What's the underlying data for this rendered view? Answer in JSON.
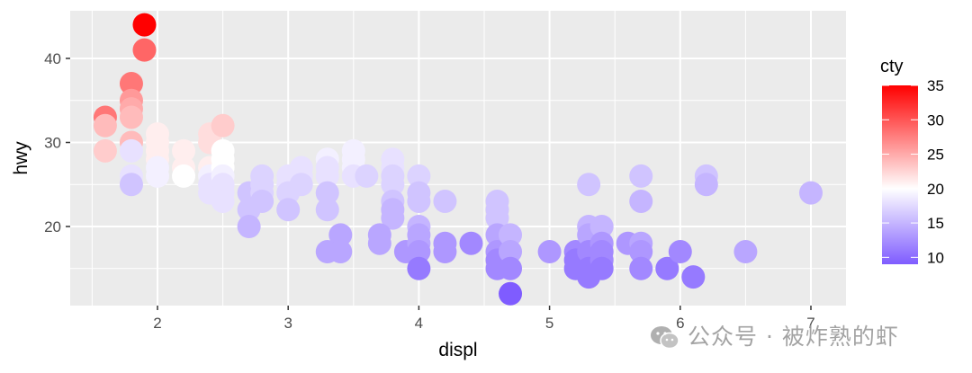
{
  "chart_data": {
    "type": "scatter",
    "title": "",
    "xlabel": "displ",
    "ylabel": "hwy",
    "xlim": [
      1.4,
      7.3
    ],
    "ylim": [
      10.5,
      46
    ],
    "x_ticks": [
      2,
      3,
      4,
      5,
      6,
      7
    ],
    "y_ticks": [
      20,
      30,
      40
    ],
    "grid": true,
    "legend": {
      "title": "cty",
      "type": "colorbar",
      "position": "right",
      "ticks": [
        10,
        15,
        20,
        25,
        30,
        35
      ],
      "range": [
        9,
        35
      ],
      "low_color": "#7f5cff",
      "mid_color": "#ffffff",
      "mid_value": 20,
      "high_color": "#ff0000"
    },
    "points": [
      {
        "displ": 1.9,
        "hwy": 44,
        "cty": 35
      },
      {
        "displ": 1.9,
        "hwy": 41,
        "cty": 29
      },
      {
        "displ": 1.8,
        "hwy": 37,
        "cty": 28
      },
      {
        "displ": 1.8,
        "hwy": 35,
        "cty": 26
      },
      {
        "displ": 1.8,
        "hwy": 34,
        "cty": 25
      },
      {
        "displ": 1.8,
        "hwy": 33,
        "cty": 24
      },
      {
        "displ": 1.8,
        "hwy": 30,
        "cty": 24
      },
      {
        "displ": 1.8,
        "hwy": 29,
        "cty": 18
      },
      {
        "displ": 1.8,
        "hwy": 26,
        "cty": 18
      },
      {
        "displ": 1.8,
        "hwy": 25,
        "cty": 16
      },
      {
        "displ": 1.6,
        "hwy": 33,
        "cty": 28
      },
      {
        "displ": 1.6,
        "hwy": 32,
        "cty": 24
      },
      {
        "displ": 1.6,
        "hwy": 29,
        "cty": 23
      },
      {
        "displ": 2.0,
        "hwy": 31,
        "cty": 21
      },
      {
        "displ": 2.0,
        "hwy": 30,
        "cty": 21
      },
      {
        "displ": 2.0,
        "hwy": 29,
        "cty": 21
      },
      {
        "displ": 2.0,
        "hwy": 28,
        "cty": 21
      },
      {
        "displ": 2.0,
        "hwy": 27,
        "cty": 19
      },
      {
        "displ": 2.0,
        "hwy": 26,
        "cty": 19
      },
      {
        "displ": 2.2,
        "hwy": 29,
        "cty": 21
      },
      {
        "displ": 2.2,
        "hwy": 27,
        "cty": 21
      },
      {
        "displ": 2.2,
        "hwy": 26,
        "cty": 20
      },
      {
        "displ": 2.4,
        "hwy": 31,
        "cty": 22
      },
      {
        "displ": 2.4,
        "hwy": 30,
        "cty": 22
      },
      {
        "displ": 2.4,
        "hwy": 27,
        "cty": 21
      },
      {
        "displ": 2.4,
        "hwy": 26,
        "cty": 19
      },
      {
        "displ": 2.4,
        "hwy": 25,
        "cty": 18
      },
      {
        "displ": 2.4,
        "hwy": 24,
        "cty": 18
      },
      {
        "displ": 2.5,
        "hwy": 32,
        "cty": 23
      },
      {
        "displ": 2.5,
        "hwy": 29,
        "cty": 20
      },
      {
        "displ": 2.5,
        "hwy": 28,
        "cty": 20
      },
      {
        "displ": 2.5,
        "hwy": 27,
        "cty": 20
      },
      {
        "displ": 2.5,
        "hwy": 26,
        "cty": 19
      },
      {
        "displ": 2.5,
        "hwy": 25,
        "cty": 18
      },
      {
        "displ": 2.5,
        "hwy": 24,
        "cty": 18
      },
      {
        "displ": 2.5,
        "hwy": 23,
        "cty": 18
      },
      {
        "displ": 2.7,
        "hwy": 24,
        "cty": 16
      },
      {
        "displ": 2.7,
        "hwy": 22,
        "cty": 16
      },
      {
        "displ": 2.7,
        "hwy": 20,
        "cty": 15
      },
      {
        "displ": 2.8,
        "hwy": 26,
        "cty": 17
      },
      {
        "displ": 2.8,
        "hwy": 25,
        "cty": 17
      },
      {
        "displ": 2.8,
        "hwy": 24,
        "cty": 17
      },
      {
        "displ": 2.8,
        "hwy": 23,
        "cty": 16
      },
      {
        "displ": 3.0,
        "hwy": 26,
        "cty": 18
      },
      {
        "displ": 3.0,
        "hwy": 25,
        "cty": 18
      },
      {
        "displ": 3.0,
        "hwy": 24,
        "cty": 17
      },
      {
        "displ": 3.0,
        "hwy": 22,
        "cty": 16
      },
      {
        "displ": 3.1,
        "hwy": 27,
        "cty": 18
      },
      {
        "displ": 3.1,
        "hwy": 26,
        "cty": 18
      },
      {
        "displ": 3.1,
        "hwy": 25,
        "cty": 17
      },
      {
        "displ": 3.3,
        "hwy": 28,
        "cty": 19
      },
      {
        "displ": 3.3,
        "hwy": 27,
        "cty": 18
      },
      {
        "displ": 3.3,
        "hwy": 26,
        "cty": 18
      },
      {
        "displ": 3.3,
        "hwy": 24,
        "cty": 16
      },
      {
        "displ": 3.3,
        "hwy": 22,
        "cty": 16
      },
      {
        "displ": 3.3,
        "hwy": 17,
        "cty": 14
      },
      {
        "displ": 3.4,
        "hwy": 19,
        "cty": 14
      },
      {
        "displ": 3.4,
        "hwy": 17,
        "cty": 14
      },
      {
        "displ": 3.5,
        "hwy": 29,
        "cty": 19
      },
      {
        "displ": 3.5,
        "hwy": 28,
        "cty": 19
      },
      {
        "displ": 3.5,
        "hwy": 27,
        "cty": 19
      },
      {
        "displ": 3.5,
        "hwy": 26,
        "cty": 18
      },
      {
        "displ": 3.6,
        "hwy": 26,
        "cty": 17
      },
      {
        "displ": 3.8,
        "hwy": 28,
        "cty": 18
      },
      {
        "displ": 3.8,
        "hwy": 27,
        "cty": 18
      },
      {
        "displ": 3.8,
        "hwy": 26,
        "cty": 17
      },
      {
        "displ": 3.8,
        "hwy": 25,
        "cty": 17
      },
      {
        "displ": 3.8,
        "hwy": 23,
        "cty": 16
      },
      {
        "displ": 3.8,
        "hwy": 22,
        "cty": 15
      },
      {
        "displ": 3.8,
        "hwy": 21,
        "cty": 15
      },
      {
        "displ": 3.7,
        "hwy": 19,
        "cty": 14
      },
      {
        "displ": 3.7,
        "hwy": 18,
        "cty": 14
      },
      {
        "displ": 3.9,
        "hwy": 17,
        "cty": 13
      },
      {
        "displ": 4.0,
        "hwy": 26,
        "cty": 17
      },
      {
        "displ": 4.0,
        "hwy": 24,
        "cty": 16
      },
      {
        "displ": 4.0,
        "hwy": 23,
        "cty": 16
      },
      {
        "displ": 4.0,
        "hwy": 20,
        "cty": 15
      },
      {
        "displ": 4.0,
        "hwy": 19,
        "cty": 14
      },
      {
        "displ": 4.0,
        "hwy": 18,
        "cty": 14
      },
      {
        "displ": 4.0,
        "hwy": 17,
        "cty": 13
      },
      {
        "displ": 4.0,
        "hwy": 15,
        "cty": 11
      },
      {
        "displ": 4.2,
        "hwy": 23,
        "cty": 16
      },
      {
        "displ": 4.2,
        "hwy": 18,
        "cty": 13
      },
      {
        "displ": 4.2,
        "hwy": 17,
        "cty": 13
      },
      {
        "displ": 4.4,
        "hwy": 18,
        "cty": 12
      },
      {
        "displ": 4.6,
        "hwy": 23,
        "cty": 16
      },
      {
        "displ": 4.6,
        "hwy": 22,
        "cty": 16
      },
      {
        "displ": 4.6,
        "hwy": 21,
        "cty": 16
      },
      {
        "displ": 4.6,
        "hwy": 19,
        "cty": 14
      },
      {
        "displ": 4.6,
        "hwy": 17,
        "cty": 13
      },
      {
        "displ": 4.6,
        "hwy": 16,
        "cty": 12
      },
      {
        "displ": 4.6,
        "hwy": 15,
        "cty": 12
      },
      {
        "displ": 4.7,
        "hwy": 19,
        "cty": 15
      },
      {
        "displ": 4.7,
        "hwy": 17,
        "cty": 14
      },
      {
        "displ": 4.7,
        "hwy": 15,
        "cty": 12
      },
      {
        "displ": 4.7,
        "hwy": 12,
        "cty": 9
      },
      {
        "displ": 5.0,
        "hwy": 17,
        "cty": 13
      },
      {
        "displ": 5.2,
        "hwy": 17,
        "cty": 12
      },
      {
        "displ": 5.2,
        "hwy": 16,
        "cty": 11
      },
      {
        "displ": 5.2,
        "hwy": 15,
        "cty": 11
      },
      {
        "displ": 5.3,
        "hwy": 25,
        "cty": 16
      },
      {
        "displ": 5.3,
        "hwy": 20,
        "cty": 15
      },
      {
        "displ": 5.3,
        "hwy": 19,
        "cty": 14
      },
      {
        "displ": 5.3,
        "hwy": 17,
        "cty": 12
      },
      {
        "displ": 5.3,
        "hwy": 15,
        "cty": 11
      },
      {
        "displ": 5.3,
        "hwy": 14,
        "cty": 11
      },
      {
        "displ": 5.4,
        "hwy": 20,
        "cty": 15
      },
      {
        "displ": 5.4,
        "hwy": 18,
        "cty": 13
      },
      {
        "displ": 5.4,
        "hwy": 17,
        "cty": 12
      },
      {
        "displ": 5.4,
        "hwy": 16,
        "cty": 12
      },
      {
        "displ": 5.4,
        "hwy": 15,
        "cty": 11
      },
      {
        "displ": 5.6,
        "hwy": 18,
        "cty": 13
      },
      {
        "displ": 5.7,
        "hwy": 26,
        "cty": 16
      },
      {
        "displ": 5.7,
        "hwy": 23,
        "cty": 15
      },
      {
        "displ": 5.7,
        "hwy": 18,
        "cty": 14
      },
      {
        "displ": 5.7,
        "hwy": 17,
        "cty": 13
      },
      {
        "displ": 5.7,
        "hwy": 15,
        "cty": 12
      },
      {
        "displ": 5.9,
        "hwy": 15,
        "cty": 11
      },
      {
        "displ": 6.0,
        "hwy": 17,
        "cty": 12
      },
      {
        "displ": 6.1,
        "hwy": 14,
        "cty": 11
      },
      {
        "displ": 6.2,
        "hwy": 26,
        "cty": 16
      },
      {
        "displ": 6.2,
        "hwy": 25,
        "cty": 15
      },
      {
        "displ": 6.5,
        "hwy": 17,
        "cty": 14
      },
      {
        "displ": 7.0,
        "hwy": 24,
        "cty": 15
      }
    ]
  },
  "watermark": {
    "icon": "wechat-icon",
    "text": "公众号 · 被炸熟的虾"
  }
}
